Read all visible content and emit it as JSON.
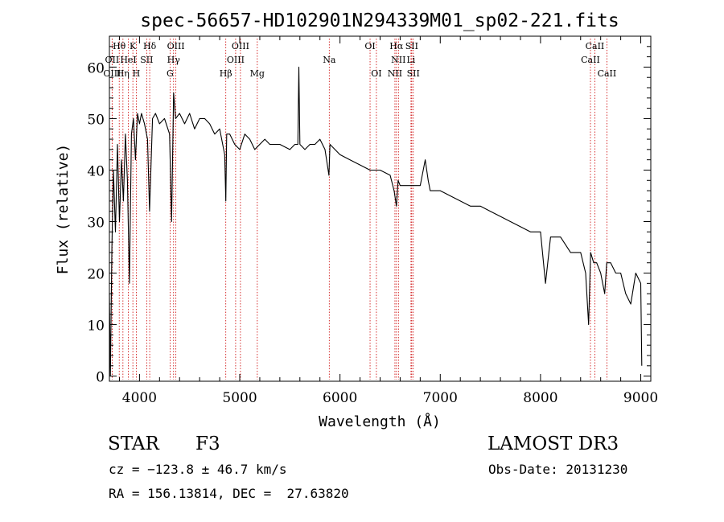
{
  "chart_data": {
    "type": "line",
    "title": "spec-56657-HD102901N294339M01_sp02-221.fits",
    "xlabel": "Wavelength (Å)",
    "ylabel": "Flux (relative)",
    "xlim": [
      3700,
      9100
    ],
    "ylim": [
      -1,
      66
    ],
    "xticks": [
      4000,
      5000,
      6000,
      7000,
      8000,
      9000
    ],
    "yticks": [
      0,
      10,
      20,
      30,
      40,
      50,
      60
    ],
    "grid": false,
    "line_color": "#000000",
    "marker_color": "#cc0000",
    "spectrum": {
      "name": "flux",
      "x": [
        3700,
        3710,
        3725,
        3740,
        3760,
        3780,
        3800,
        3820,
        3840,
        3860,
        3880,
        3900,
        3920,
        3940,
        3960,
        3980,
        4000,
        4020,
        4050,
        4080,
        4100,
        4130,
        4160,
        4200,
        4250,
        4300,
        4320,
        4340,
        4360,
        4400,
        4450,
        4500,
        4550,
        4600,
        4650,
        4700,
        4750,
        4800,
        4850,
        4861,
        4870,
        4900,
        4950,
        5000,
        5050,
        5100,
        5150,
        5200,
        5250,
        5300,
        5400,
        5500,
        5550,
        5580,
        5590,
        5600,
        5650,
        5700,
        5750,
        5800,
        5850,
        5890,
        5900,
        5950,
        6000,
        6100,
        6200,
        6300,
        6400,
        6500,
        6540,
        6563,
        6580,
        6600,
        6700,
        6800,
        6850,
        6880,
        6900,
        7000,
        7100,
        7200,
        7300,
        7400,
        7500,
        7600,
        7700,
        7800,
        7900,
        8000,
        8050,
        8100,
        8200,
        8300,
        8400,
        8450,
        8480,
        8500,
        8530,
        8560,
        8600,
        8640,
        8660,
        8700,
        8750,
        8800,
        8850,
        8900,
        8950,
        9000,
        9010
      ],
      "y": [
        16,
        0,
        25,
        40,
        28,
        45,
        30,
        42,
        34,
        47,
        38,
        18,
        47,
        50,
        42,
        51,
        49,
        51,
        49,
        46,
        32,
        50,
        51,
        49,
        50,
        47,
        30,
        55,
        50,
        51,
        49,
        51,
        48,
        50,
        50,
        49,
        47,
        48,
        43,
        34,
        47,
        47,
        45,
        44,
        47,
        46,
        44,
        45,
        46,
        45,
        45,
        44,
        45,
        45,
        60,
        45,
        44,
        45,
        45,
        46,
        44,
        39,
        45,
        44,
        43,
        42,
        41,
        40,
        40,
        39,
        36,
        33,
        38,
        37,
        37,
        37,
        42,
        38,
        36,
        36,
        35,
        34,
        33,
        33,
        32,
        31,
        30,
        29,
        28,
        28,
        18,
        27,
        27,
        24,
        24,
        20,
        10,
        24,
        22,
        22,
        20,
        16,
        22,
        22,
        20,
        20,
        16,
        14,
        20,
        18,
        2
      ]
    },
    "lines": [
      {
        "name": "Hθ",
        "wl": 3798,
        "row": 0
      },
      {
        "name": "K",
        "wl": 3934,
        "row": 0
      },
      {
        "name": "Hδ",
        "wl": 4102,
        "row": 0
      },
      {
        "name": "OIII",
        "wl": 4363,
        "row": 0
      },
      {
        "name": "OIII",
        "wl": 5007,
        "row": 0
      },
      {
        "name": "OI",
        "wl": 6300,
        "row": 0
      },
      {
        "name": "Hα",
        "wl": 6563,
        "row": 0
      },
      {
        "name": "SII",
        "wl": 6716,
        "row": 0
      },
      {
        "name": "CaII",
        "wl": 8542,
        "row": 0
      },
      {
        "name": "OII",
        "wl": 3727,
        "row": 1
      },
      {
        "name": "HeI",
        "wl": 3889,
        "row": 1
      },
      {
        "name": "SII",
        "wl": 4072,
        "row": 1
      },
      {
        "name": "Hγ",
        "wl": 4340,
        "row": 1
      },
      {
        "name": "OIII",
        "wl": 4959,
        "row": 1
      },
      {
        "name": "Na",
        "wl": 5893,
        "row": 1
      },
      {
        "name": "NII",
        "wl": 6583,
        "row": 1
      },
      {
        "name": "Li",
        "wl": 6708,
        "row": 1
      },
      {
        "name": "CaII",
        "wl": 8498,
        "row": 1
      },
      {
        "name": "OIII",
        "wl": 3727,
        "row": 2
      },
      {
        "name": "Hη",
        "wl": 3835,
        "row": 2
      },
      {
        "name": "H",
        "wl": 3968,
        "row": 2
      },
      {
        "name": "G",
        "wl": 4305,
        "row": 2
      },
      {
        "name": "Hβ",
        "wl": 4861,
        "row": 2
      },
      {
        "name": "Mg",
        "wl": 5175,
        "row": 2
      },
      {
        "name": "OI",
        "wl": 6363,
        "row": 2
      },
      {
        "name": "NII",
        "wl": 6548,
        "row": 2
      },
      {
        "name": "SII",
        "wl": 6731,
        "row": 2
      },
      {
        "name": "CaII",
        "wl": 8662,
        "row": 2
      }
    ]
  },
  "info": {
    "object_class": "STAR",
    "subclass": "F3",
    "survey": "LAMOST DR3",
    "cz": "cz = −123.8 ± 46.7 km/s",
    "obs_date": "Obs-Date: 20131230",
    "coords": "RA = 156.13814, DEC =  27.63820"
  }
}
